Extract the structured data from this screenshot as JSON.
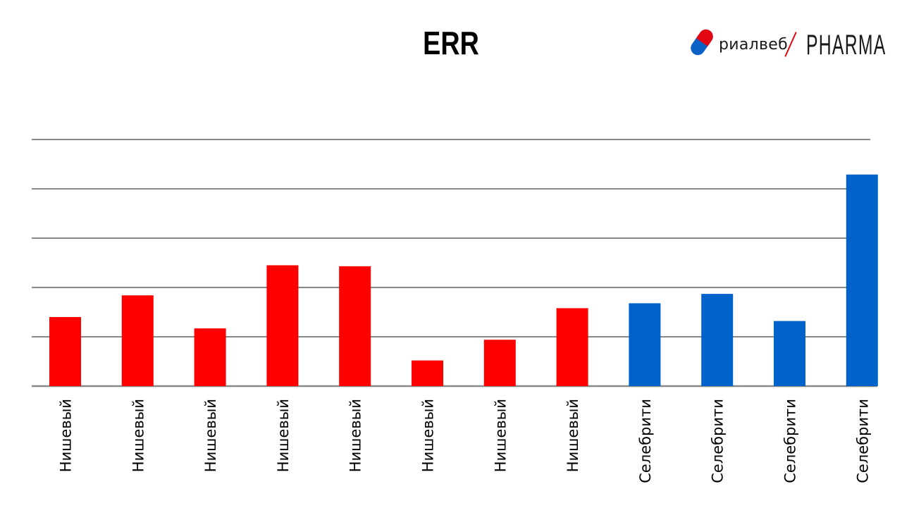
{
  "title": "ERR",
  "logo": {
    "brand_text": "риалвеб",
    "product_text": "PHARMA",
    "colors": {
      "pill_red": "#e30613",
      "pill_blue": "#0a62c7",
      "slash": "#e30613"
    }
  },
  "chart_data": {
    "type": "bar",
    "title": "ERR",
    "xlabel": "",
    "ylabel": "",
    "grid": true,
    "ylim": [
      0,
      5
    ],
    "categories": [
      "Нишевый",
      "Нишевый",
      "Нишевый",
      "Нишевый",
      "Нишевый",
      "Нишевый",
      "Нишевый",
      "Нишевый",
      "Селебрити",
      "Селебрити",
      "Селебрити",
      "Селебрити"
    ],
    "values": [
      1.4,
      1.84,
      1.17,
      2.45,
      2.43,
      0.52,
      0.94,
      1.58,
      1.68,
      1.87,
      1.32,
      4.29
    ],
    "colors": [
      "#ff0000",
      "#ff0000",
      "#ff0000",
      "#ff0000",
      "#ff0000",
      "#ff0000",
      "#ff0000",
      "#ff0000",
      "#0063cc",
      "#0063cc",
      "#0063cc",
      "#0063cc"
    ],
    "gridline_color": "#888888"
  }
}
